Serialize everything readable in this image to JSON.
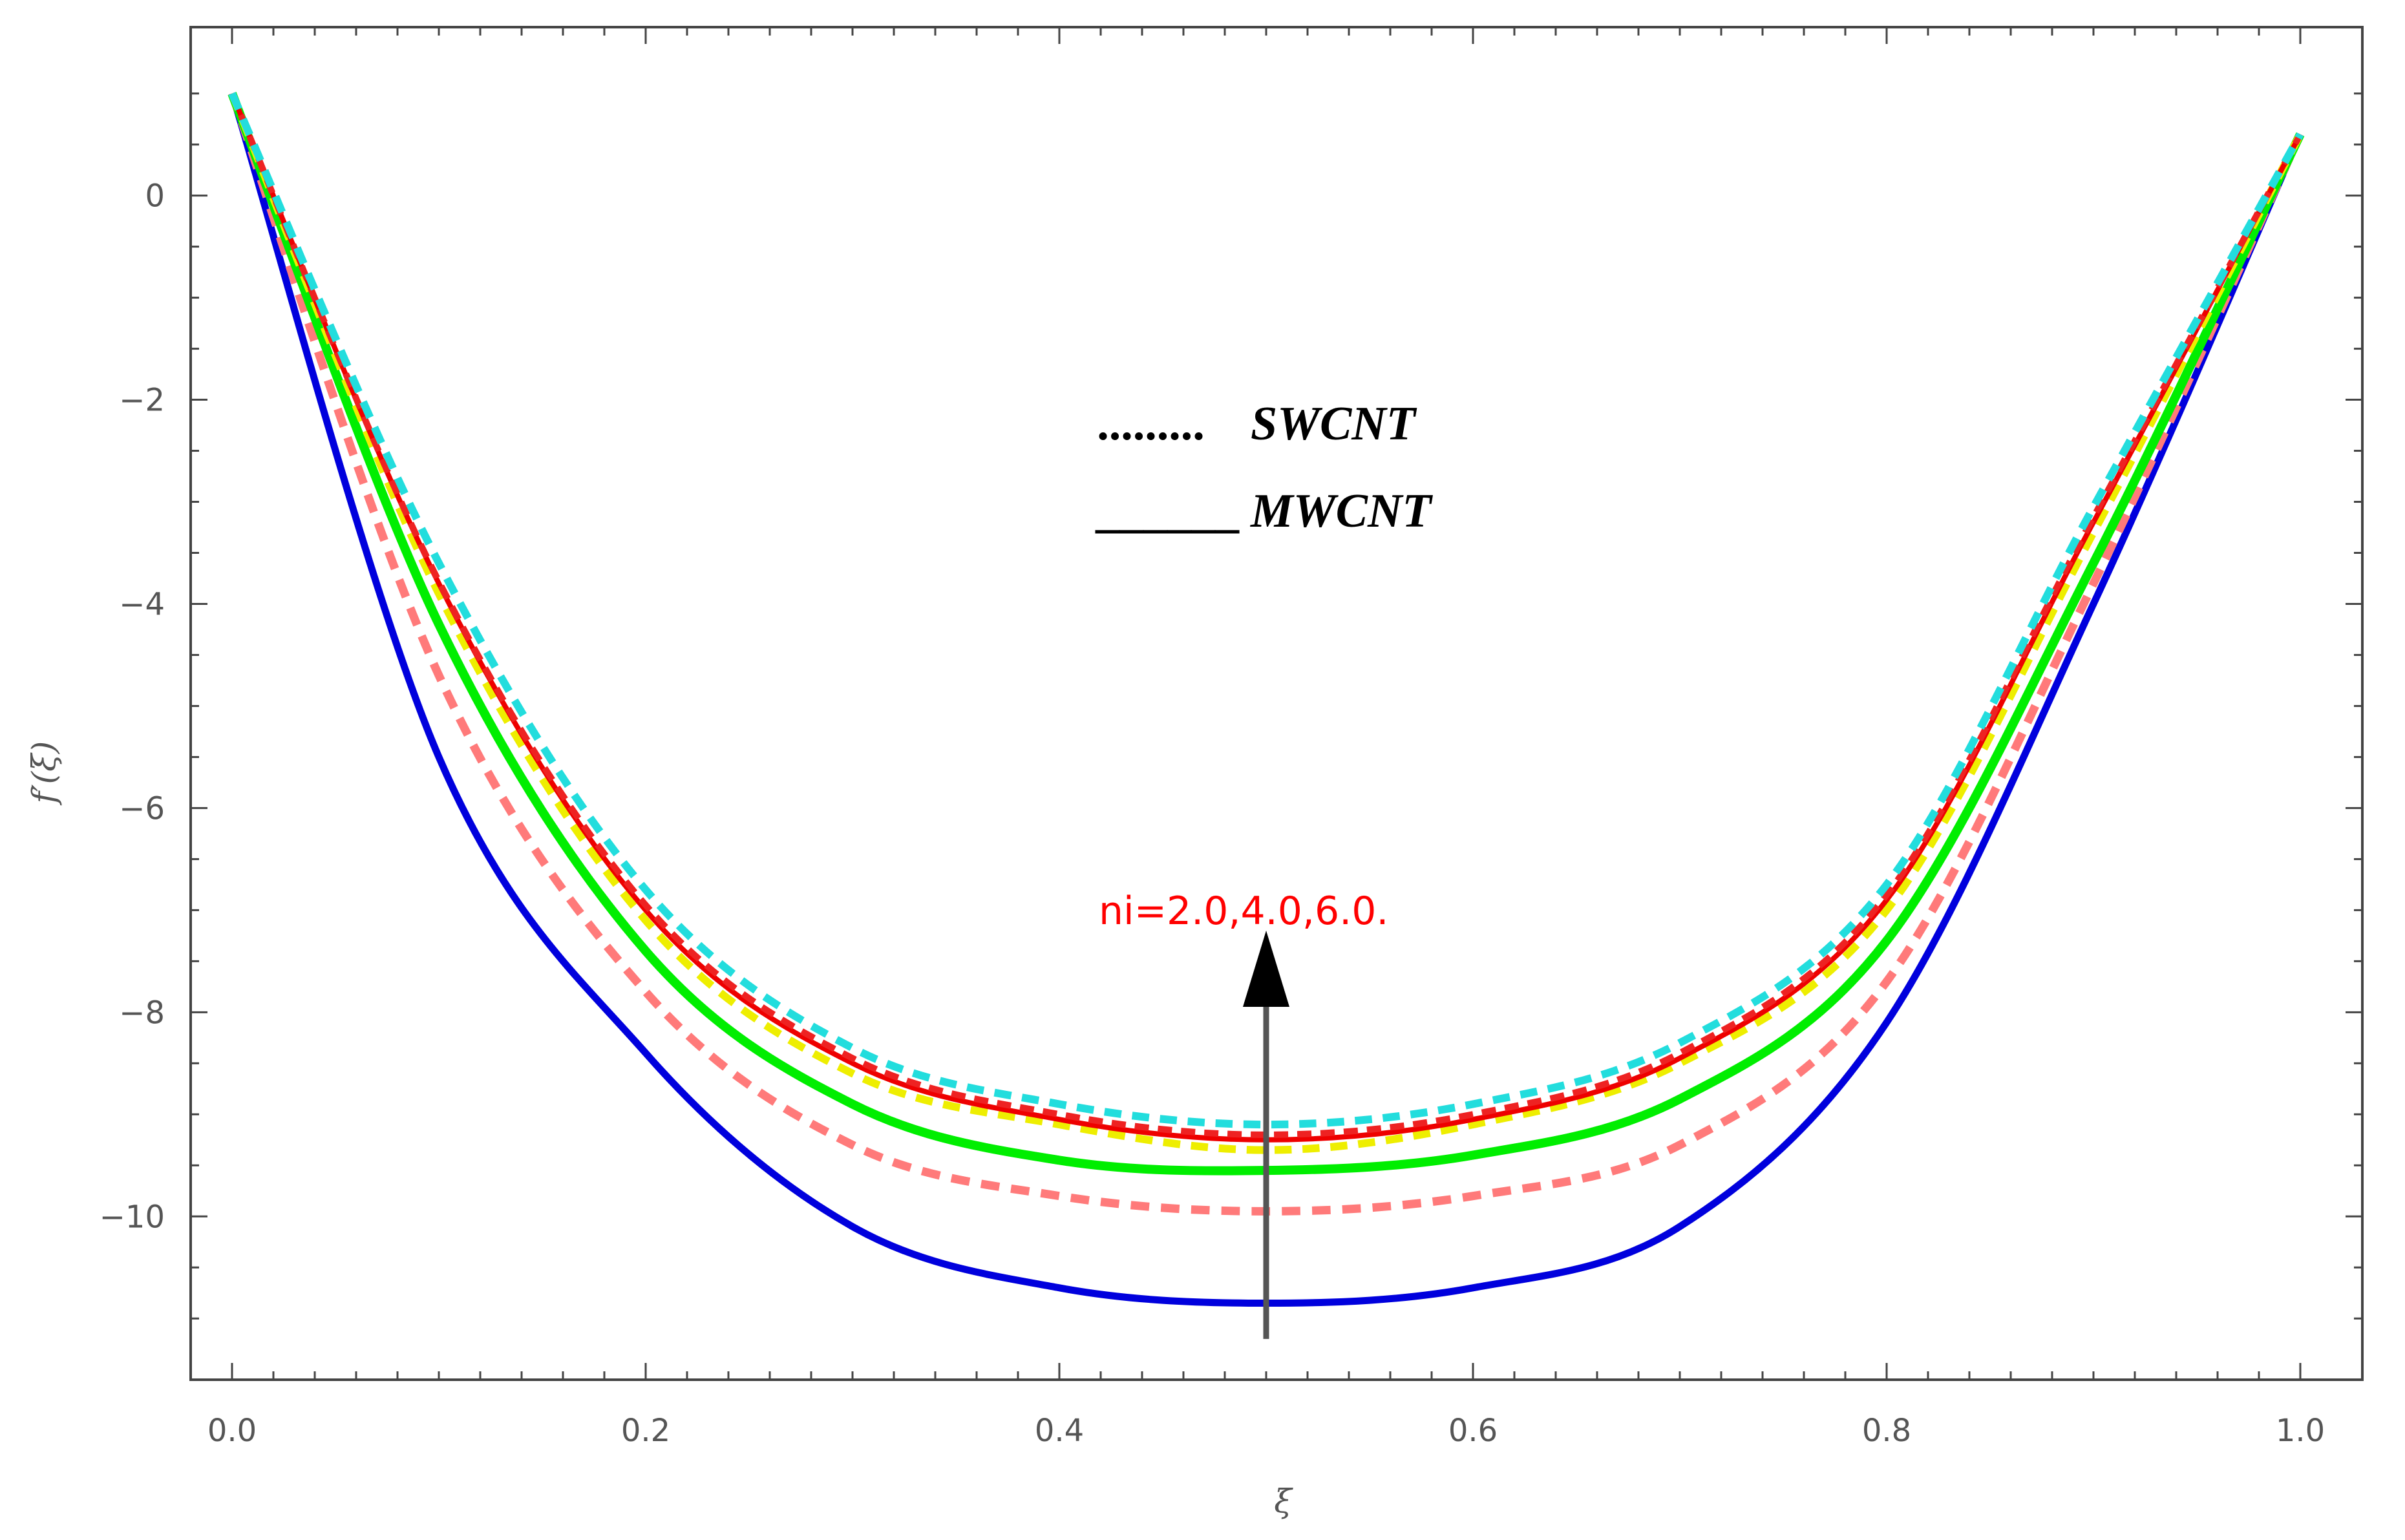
{
  "chart_data": {
    "type": "line",
    "title": "",
    "xlabel": "ξ",
    "ylabel": "f′(ξ)",
    "xlim": [
      -0.02,
      1.03
    ],
    "ylim": [
      -11.6,
      1.65
    ],
    "xticks": [
      0.0,
      0.2,
      0.4,
      0.6,
      0.8,
      1.0
    ],
    "xtick_labels": [
      "0.0",
      "0.2",
      "0.4",
      "0.6",
      "0.8",
      "1.0"
    ],
    "yticks": [
      0,
      -2,
      -4,
      -6,
      -8,
      -10
    ],
    "ytick_labels": [
      "0",
      "−2",
      "−4",
      "−6",
      "−8",
      "−10"
    ],
    "grid": false,
    "series": [
      {
        "color": "#0000dd",
        "style": "solid",
        "width": 11,
        "points": [
          [
            0,
            1.0
          ],
          [
            0.1,
            -5.5
          ],
          [
            0.2,
            -8.4
          ],
          [
            0.3,
            -10.1
          ],
          [
            0.4,
            -10.7
          ],
          [
            0.5,
            -10.85
          ],
          [
            0.6,
            -10.7
          ],
          [
            0.7,
            -10.1
          ],
          [
            0.8,
            -8.1
          ],
          [
            0.9,
            -4.0
          ],
          [
            1.0,
            0.6
          ]
        ]
      },
      {
        "color": "#ff7a7a",
        "style": "dashed",
        "width": 13,
        "points": [
          [
            0,
            1.0
          ],
          [
            0.1,
            -4.7
          ],
          [
            0.2,
            -7.8
          ],
          [
            0.3,
            -9.3
          ],
          [
            0.4,
            -9.8
          ],
          [
            0.5,
            -9.95
          ],
          [
            0.6,
            -9.8
          ],
          [
            0.7,
            -9.3
          ],
          [
            0.8,
            -7.7
          ],
          [
            0.9,
            -3.8
          ],
          [
            1.0,
            0.6
          ]
        ]
      },
      {
        "color": "#00ee00",
        "style": "solid",
        "width": 14,
        "points": [
          [
            0,
            1.0
          ],
          [
            0.1,
            -4.2
          ],
          [
            0.2,
            -7.4
          ],
          [
            0.3,
            -8.9
          ],
          [
            0.4,
            -9.45
          ],
          [
            0.5,
            -9.55
          ],
          [
            0.6,
            -9.4
          ],
          [
            0.7,
            -8.85
          ],
          [
            0.8,
            -7.3
          ],
          [
            0.9,
            -3.6
          ],
          [
            1.0,
            0.6
          ]
        ]
      },
      {
        "color": "#eeee00",
        "style": "dashed",
        "width": 12,
        "points": [
          [
            0,
            1.0
          ],
          [
            0.1,
            -3.9
          ],
          [
            0.2,
            -7.1
          ],
          [
            0.3,
            -8.6
          ],
          [
            0.4,
            -9.1
          ],
          [
            0.5,
            -9.35
          ],
          [
            0.6,
            -9.1
          ],
          [
            0.7,
            -8.5
          ],
          [
            0.8,
            -7.0
          ],
          [
            0.9,
            -3.3
          ],
          [
            1.0,
            0.6
          ]
        ]
      },
      {
        "color": "#ee0000",
        "style": "solid",
        "width": 8,
        "points": [
          [
            0,
            1.0
          ],
          [
            0.1,
            -3.8
          ],
          [
            0.2,
            -7.0
          ],
          [
            0.3,
            -8.5
          ],
          [
            0.4,
            -9.05
          ],
          [
            0.5,
            -9.25
          ],
          [
            0.6,
            -9.05
          ],
          [
            0.7,
            -8.45
          ],
          [
            0.8,
            -6.9
          ],
          [
            0.9,
            -3.2
          ],
          [
            1.0,
            0.6
          ]
        ]
      },
      {
        "color": "#ee2222",
        "style": "dashed",
        "width": 10,
        "points": [
          [
            0,
            1.0
          ],
          [
            0.1,
            -3.78
          ],
          [
            0.2,
            -6.95
          ],
          [
            0.3,
            -8.45
          ],
          [
            0.4,
            -9.0
          ],
          [
            0.5,
            -9.2
          ],
          [
            0.6,
            -9.0
          ],
          [
            0.7,
            -8.4
          ],
          [
            0.8,
            -6.85
          ],
          [
            0.9,
            -3.15
          ],
          [
            1.0,
            0.6
          ]
        ]
      },
      {
        "color": "#22dddd",
        "style": "dashed",
        "width": 12,
        "points": [
          [
            0,
            1.0
          ],
          [
            0.1,
            -3.6
          ],
          [
            0.2,
            -6.8
          ],
          [
            0.3,
            -8.35
          ],
          [
            0.4,
            -8.9
          ],
          [
            0.5,
            -9.1
          ],
          [
            0.6,
            -8.9
          ],
          [
            0.7,
            -8.3
          ],
          [
            0.8,
            -6.75
          ],
          [
            0.9,
            -3.05
          ],
          [
            1.0,
            0.6
          ]
        ]
      }
    ],
    "legend": {
      "position": "upper-center",
      "entries": [
        {
          "marker": ".........",
          "label": "SWCNT"
        },
        {
          "marker": "______",
          "label": "MWCNT"
        }
      ]
    },
    "annotations": [
      {
        "text": "ni=2.0,4.0,6.0.",
        "color": "#ff0000",
        "arrow_from": [
          0.5,
          -11.2
        ],
        "arrow_to": [
          0.5,
          -7.2
        ]
      }
    ]
  }
}
